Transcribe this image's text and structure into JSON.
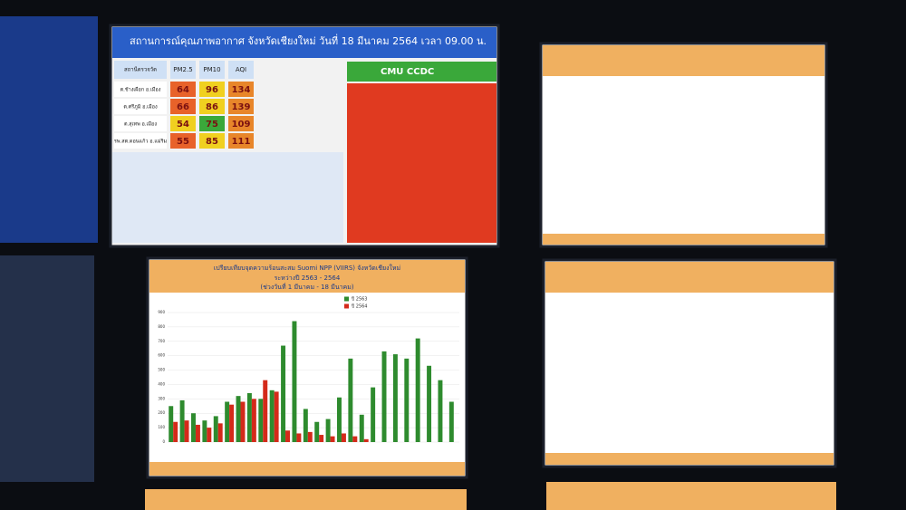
{
  "air": {
    "title": "สถานการณ์คุณภาพอากาศ จังหวัดเชียงใหม่ วันที่ 18 มีนาคม 2564 เวลา 09.00 น.",
    "headers": [
      "สถานีตรวจวัด",
      "PM2.5",
      "PM10",
      "AQI"
    ],
    "rows": [
      [
        "ต.ช้างเผือก อ.เมือง",
        "64",
        "96",
        "134"
      ],
      [
        "ต.ศรีภูมิ อ.เมือง",
        "66",
        "86",
        "139"
      ],
      [
        "ต.สุเทพ อ.เมือง",
        "54",
        "75",
        "109"
      ],
      [
        "รพ.สต.ดอนแก้ว อ.แม่ริม",
        "55",
        "85",
        "111"
      ]
    ],
    "logo": "CMU CCDC"
  },
  "chart_data": {
    "type": "bar",
    "title": "เปรียบเทียบจุดความร้อนสะสม Suomi NPP (VIIRS) จังหวัดเชียงใหม่",
    "subtitle": "ระหว่างปี 2563 - 2564",
    "period": "(ช่วงวันที่ 1 มีนาคม - 18 มีนาคม)",
    "categories": [
      null,
      null,
      null,
      null,
      null,
      null,
      null,
      null,
      null,
      null,
      null,
      null,
      null,
      null,
      null,
      null,
      null,
      null,
      null,
      null,
      null,
      null,
      null,
      null,
      null,
      null
    ],
    "series": [
      {
        "name": "ปี 2563",
        "color": "#2e8b2e",
        "values": [
          250,
          290,
          200,
          150,
          180,
          280,
          320,
          340,
          300,
          360,
          670,
          840,
          230,
          140,
          160,
          310,
          580,
          190,
          380,
          630,
          610,
          580,
          720,
          530,
          430,
          280
        ]
      },
      {
        "name": "ปี 2564",
        "color": "#d42a1a",
        "values": [
          140,
          150,
          120,
          100,
          130,
          260,
          280,
          300,
          430,
          350,
          80,
          60,
          70,
          50,
          40,
          60,
          40,
          20,
          0,
          0,
          0,
          0,
          0,
          0,
          0,
          0
        ]
      }
    ],
    "ylim": [
      0,
      900
    ],
    "yticks": [
      0,
      100,
      200,
      300,
      400,
      500,
      600,
      700,
      800,
      900
    ],
    "grid": true
  }
}
